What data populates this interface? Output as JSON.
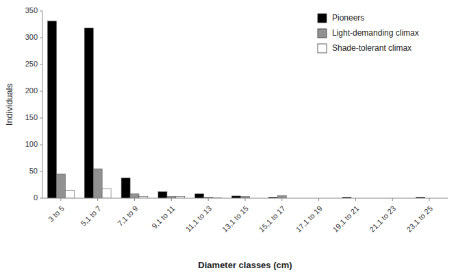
{
  "chart_data": {
    "type": "bar",
    "xlabel": "Diameter classes (cm)",
    "ylabel": "Individuals",
    "categories": [
      "3 to 5",
      "5,1 to 7",
      "7,1 to 9",
      "9,1 to 11",
      "11,1 to 13",
      "13,1 to 15",
      "15,1 to 17",
      "17,1 to 19",
      "19,1 to 21",
      "21,1 to 23",
      "23,1 to 25"
    ],
    "series": [
      {
        "name": "Pioneers",
        "color": "#000000",
        "values": [
          331,
          318,
          38,
          12,
          8,
          4,
          2,
          0,
          2,
          0,
          2
        ]
      },
      {
        "name": "Light-demanding climax",
        "color": "#919191",
        "values": [
          45,
          55,
          8,
          3,
          2,
          3,
          5,
          0,
          0,
          0,
          0
        ]
      },
      {
        "name": "Shade-tolerant climax",
        "color": "#ffffff",
        "values": [
          15,
          18,
          3,
          3,
          1,
          0,
          0,
          0,
          0,
          0,
          0
        ]
      }
    ],
    "ylim": [
      0,
      350
    ],
    "yticks": [
      0,
      50,
      100,
      150,
      200,
      250,
      300,
      350
    ],
    "grid": false,
    "legend": "upper right"
  }
}
